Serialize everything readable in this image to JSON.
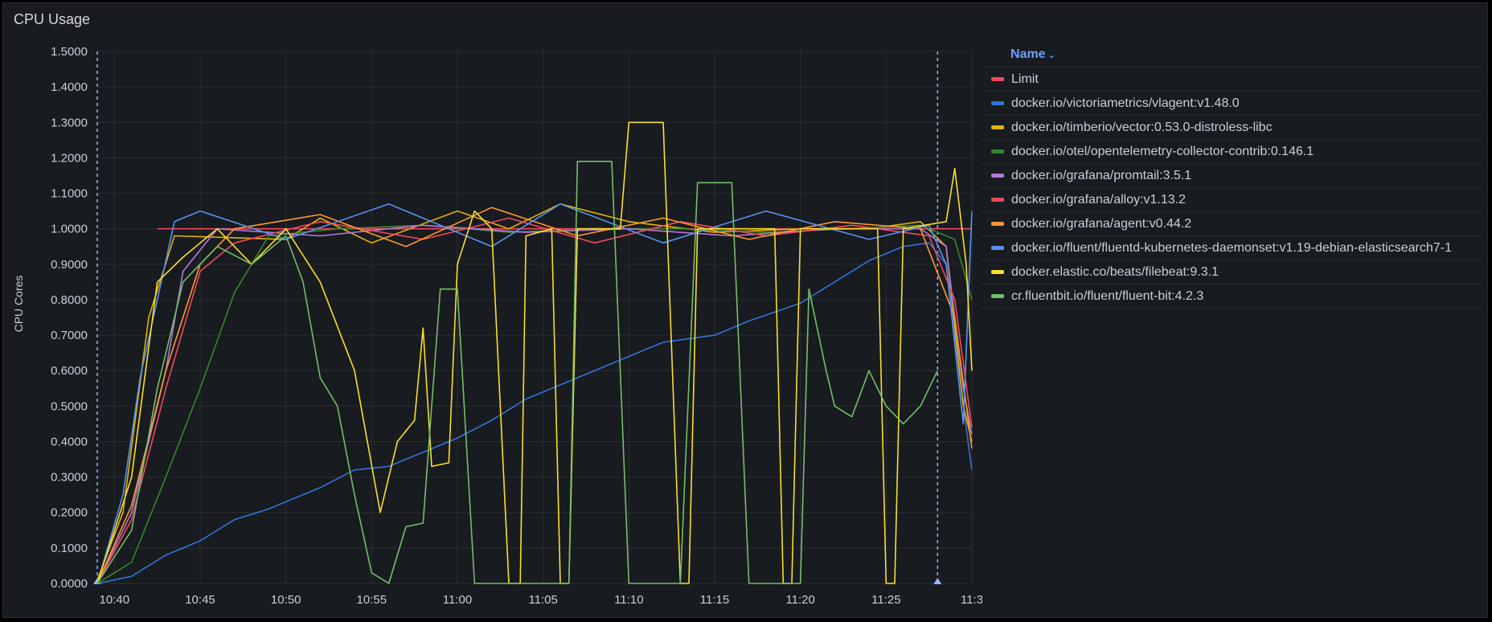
{
  "panel": {
    "title": "CPU Usage"
  },
  "legend": {
    "header": "Name",
    "sort_icon": "chevron-down-icon"
  },
  "colors": {
    "background": "#181b1f",
    "grid": "#2a2d34",
    "axis_text": "#ccccdc",
    "annotation": "#8ab8ff"
  },
  "chart_data": {
    "type": "line",
    "title": "CPU Usage",
    "xlabel": "",
    "ylabel": "CPU Cores",
    "ylim": [
      0,
      1.5
    ],
    "xlim": [
      "10:39:00",
      "11:30:00"
    ],
    "grid": true,
    "legend_position": "right",
    "y_ticks": [
      "0.0000",
      "0.1000",
      "0.2000",
      "0.3000",
      "0.4000",
      "0.5000",
      "0.6000",
      "0.7000",
      "0.8000",
      "0.9000",
      "1.0000",
      "1.1000",
      "1.2000",
      "1.3000",
      "1.4000",
      "1.5000"
    ],
    "x_ticks": [
      "10:40",
      "10:45",
      "10:50",
      "10:55",
      "11:00",
      "11:05",
      "11:10",
      "11:15",
      "11:20",
      "11:25",
      "11:3"
    ],
    "annotations": [
      {
        "x": "10:39:00"
      },
      {
        "x": "11:28:00"
      }
    ],
    "series": [
      {
        "name": "Limit",
        "color": "#f2495c",
        "points": [
          [
            "10:42:30",
            1.0
          ],
          [
            "11:30:00",
            1.0
          ]
        ]
      },
      {
        "name": "docker.io/victoriametrics/vlagent:v1.48.0",
        "color": "#3274d9",
        "points": [
          [
            "10:39:00",
            0.0
          ],
          [
            "10:41:00",
            0.02
          ],
          [
            "10:42:00",
            0.05
          ],
          [
            "10:43:00",
            0.08
          ],
          [
            "10:45:00",
            0.12
          ],
          [
            "10:47:00",
            0.18
          ],
          [
            "10:49:00",
            0.21
          ],
          [
            "10:52:00",
            0.27
          ],
          [
            "10:54:00",
            0.32
          ],
          [
            "10:56:00",
            0.33
          ],
          [
            "10:58:00",
            0.37
          ],
          [
            "11:00:00",
            0.41
          ],
          [
            "11:02:00",
            0.46
          ],
          [
            "11:04:00",
            0.52
          ],
          [
            "11:06:00",
            0.56
          ],
          [
            "11:08:00",
            0.6
          ],
          [
            "11:10:00",
            0.64
          ],
          [
            "11:12:00",
            0.68
          ],
          [
            "11:15:00",
            0.7
          ],
          [
            "11:17:00",
            0.74
          ],
          [
            "11:20:00",
            0.79
          ],
          [
            "11:22:00",
            0.85
          ],
          [
            "11:24:00",
            0.91
          ],
          [
            "11:26:00",
            0.95
          ],
          [
            "11:27:30",
            0.96
          ],
          [
            "11:28:30",
            0.9
          ],
          [
            "11:29:30",
            0.5
          ],
          [
            "11:30:00",
            0.32
          ]
        ]
      },
      {
        "name": "docker.io/timberio/vector:0.53.0-distroless-libc",
        "color": "#e0b400",
        "points": [
          [
            "10:39:00",
            0.01
          ],
          [
            "10:40:30",
            0.2
          ],
          [
            "10:42:00",
            0.75
          ],
          [
            "10:43:30",
            0.98
          ],
          [
            "10:50:00",
            0.97
          ],
          [
            "10:52:00",
            1.03
          ],
          [
            "10:55:00",
            0.96
          ],
          [
            "11:00:00",
            1.05
          ],
          [
            "11:03:00",
            1.0
          ],
          [
            "11:06:00",
            1.07
          ],
          [
            "11:10:00",
            1.02
          ],
          [
            "11:15:00",
            0.99
          ],
          [
            "11:20:00",
            1.0
          ],
          [
            "11:24:00",
            1.0
          ],
          [
            "11:27:00",
            1.02
          ],
          [
            "11:28:30",
            0.95
          ],
          [
            "11:29:30",
            0.5
          ],
          [
            "11:30:00",
            0.4
          ]
        ]
      },
      {
        "name": "docker.io/otel/opentelemetry-collector-contrib:0.146.1",
        "color": "#37872d",
        "points": [
          [
            "10:39:00",
            0.0
          ],
          [
            "10:41:00",
            0.06
          ],
          [
            "10:43:00",
            0.3
          ],
          [
            "10:45:00",
            0.55
          ],
          [
            "10:47:00",
            0.82
          ],
          [
            "10:49:00",
            0.98
          ],
          [
            "10:53:00",
            1.0
          ],
          [
            "10:58:00",
            1.01
          ],
          [
            "11:03:00",
            0.99
          ],
          [
            "11:08:00",
            1.0
          ],
          [
            "11:13:00",
            1.0
          ],
          [
            "11:18:00",
            0.99
          ],
          [
            "11:23:00",
            1.0
          ],
          [
            "11:27:00",
            1.01
          ],
          [
            "11:29:00",
            0.97
          ],
          [
            "11:30:00",
            0.8
          ]
        ]
      },
      {
        "name": "docker.io/grafana/promtail:3.5.1",
        "color": "#b877d9",
        "points": [
          [
            "10:39:00",
            0.0
          ],
          [
            "10:41:00",
            0.2
          ],
          [
            "10:43:00",
            0.6
          ],
          [
            "10:44:00",
            0.88
          ],
          [
            "10:46:00",
            1.0
          ],
          [
            "10:52:00",
            0.98
          ],
          [
            "10:58:00",
            1.01
          ],
          [
            "11:04:00",
            0.99
          ],
          [
            "11:10:00",
            1.0
          ],
          [
            "11:16:00",
            0.98
          ],
          [
            "11:22:00",
            1.0
          ],
          [
            "11:27:00",
            1.0
          ],
          [
            "11:28:30",
            0.95
          ],
          [
            "11:29:30",
            0.55
          ],
          [
            "11:30:00",
            0.42
          ]
        ]
      },
      {
        "name": "docker.io/grafana/alloy:v1.13.2",
        "color": "#f2495c",
        "points": [
          [
            "10:39:00",
            0.0
          ],
          [
            "10:41:00",
            0.18
          ],
          [
            "10:43:00",
            0.55
          ],
          [
            "10:45:00",
            0.88
          ],
          [
            "10:47:00",
            0.96
          ],
          [
            "10:52:00",
            1.02
          ],
          [
            "10:58:00",
            0.97
          ],
          [
            "11:03:00",
            1.03
          ],
          [
            "11:08:00",
            0.96
          ],
          [
            "11:13:00",
            1.02
          ],
          [
            "11:18:00",
            0.98
          ],
          [
            "11:23:00",
            1.01
          ],
          [
            "11:27:30",
            0.98
          ],
          [
            "11:29:00",
            0.8
          ],
          [
            "11:30:00",
            0.44
          ]
        ]
      },
      {
        "name": "docker.io/grafana/agent:v0.44.2",
        "color": "#ff9830",
        "points": [
          [
            "10:39:00",
            0.0
          ],
          [
            "10:41:00",
            0.22
          ],
          [
            "10:43:00",
            0.6
          ],
          [
            "10:45:00",
            0.9
          ],
          [
            "10:47:00",
            1.0
          ],
          [
            "10:52:00",
            1.04
          ],
          [
            "10:57:00",
            0.95
          ],
          [
            "11:02:00",
            1.06
          ],
          [
            "11:07:00",
            0.98
          ],
          [
            "11:12:00",
            1.03
          ],
          [
            "11:17:00",
            0.97
          ],
          [
            "11:22:00",
            1.02
          ],
          [
            "11:27:00",
            1.0
          ],
          [
            "11:29:00",
            0.75
          ],
          [
            "11:30:00",
            0.38
          ]
        ]
      },
      {
        "name": "docker.io/fluent/fluentd-kubernetes-daemonset:v1.19-debian-elasticsearch7-1",
        "color": "#5794f2",
        "points": [
          [
            "10:39:00",
            0.0
          ],
          [
            "10:40:30",
            0.25
          ],
          [
            "10:41:30",
            0.58
          ],
          [
            "10:42:30",
            0.8
          ],
          [
            "10:43:30",
            1.02
          ],
          [
            "10:45:00",
            1.05
          ],
          [
            "10:50:00",
            0.97
          ],
          [
            "10:56:00",
            1.07
          ],
          [
            "11:02:00",
            0.95
          ],
          [
            "11:06:00",
            1.07
          ],
          [
            "11:12:00",
            0.96
          ],
          [
            "11:18:00",
            1.05
          ],
          [
            "11:24:00",
            0.97
          ],
          [
            "11:27:30",
            1.01
          ],
          [
            "11:28:30",
            0.9
          ],
          [
            "11:29:30",
            0.45
          ],
          [
            "11:30:00",
            1.05
          ]
        ]
      },
      {
        "name": "docker.elastic.co/beats/filebeat:9.3.1",
        "color": "#fade2a",
        "points": [
          [
            "10:39:00",
            0.0
          ],
          [
            "10:41:00",
            0.3
          ],
          [
            "10:42:30",
            0.85
          ],
          [
            "10:44:00",
            0.92
          ],
          [
            "10:46:00",
            1.0
          ],
          [
            "10:48:00",
            0.9
          ],
          [
            "10:50:00",
            1.0
          ],
          [
            "10:52:00",
            0.85
          ],
          [
            "10:54:00",
            0.6
          ],
          [
            "10:55:30",
            0.2
          ],
          [
            "10:56:30",
            0.4
          ],
          [
            "10:57:30",
            0.46
          ],
          [
            "10:58:00",
            0.72
          ],
          [
            "10:58:30",
            0.33
          ],
          [
            "10:59:30",
            0.34
          ],
          [
            "11:00:00",
            0.9
          ],
          [
            "11:01:00",
            1.05
          ],
          [
            "11:02:00",
            1.0
          ],
          [
            "11:03:00",
            0.0
          ],
          [
            "11:03:40",
            0.0
          ],
          [
            "11:04:00",
            0.98
          ],
          [
            "11:05:30",
            1.0
          ],
          [
            "11:06:00",
            0.0
          ],
          [
            "11:06:30",
            0.0
          ],
          [
            "11:07:00",
            1.0
          ],
          [
            "11:09:30",
            1.0
          ],
          [
            "11:10:00",
            1.3
          ],
          [
            "11:12:00",
            1.3
          ],
          [
            "11:13:00",
            0.0
          ],
          [
            "11:13:30",
            0.0
          ],
          [
            "11:14:00",
            1.0
          ],
          [
            "11:18:30",
            1.0
          ],
          [
            "11:19:00",
            0.0
          ],
          [
            "11:19:30",
            0.0
          ],
          [
            "11:20:00",
            1.0
          ],
          [
            "11:24:30",
            1.0
          ],
          [
            "11:25:00",
            0.0
          ],
          [
            "11:25:30",
            0.0
          ],
          [
            "11:26:00",
            1.0
          ],
          [
            "11:28:30",
            1.02
          ],
          [
            "11:29:00",
            1.17
          ],
          [
            "11:29:40",
            0.9
          ],
          [
            "11:30:00",
            0.6
          ]
        ]
      },
      {
        "name": "cr.fluentbit.io/fluent/fluent-bit:4.2.3",
        "color": "#73bf69",
        "points": [
          [
            "10:39:00",
            0.0
          ],
          [
            "10:41:00",
            0.15
          ],
          [
            "10:42:30",
            0.55
          ],
          [
            "10:44:00",
            0.85
          ],
          [
            "10:46:00",
            0.95
          ],
          [
            "10:48:00",
            0.9
          ],
          [
            "10:50:00",
            0.98
          ],
          [
            "10:51:00",
            0.85
          ],
          [
            "10:52:00",
            0.58
          ],
          [
            "10:53:00",
            0.5
          ],
          [
            "10:54:00",
            0.25
          ],
          [
            "10:55:00",
            0.03
          ],
          [
            "10:56:00",
            0.0
          ],
          [
            "10:57:00",
            0.16
          ],
          [
            "10:58:00",
            0.17
          ],
          [
            "10:59:00",
            0.83
          ],
          [
            "11:00:00",
            0.83
          ],
          [
            "11:01:00",
            0.0
          ],
          [
            "11:06:30",
            0.0
          ],
          [
            "11:07:00",
            1.19
          ],
          [
            "11:09:00",
            1.19
          ],
          [
            "11:10:00",
            0.0
          ],
          [
            "11:13:00",
            0.0
          ],
          [
            "11:14:00",
            1.13
          ],
          [
            "11:16:00",
            1.13
          ],
          [
            "11:17:00",
            0.0
          ],
          [
            "11:20:00",
            0.0
          ],
          [
            "11:20:30",
            0.83
          ],
          [
            "11:21:30",
            0.6
          ],
          [
            "11:22:00",
            0.5
          ],
          [
            "11:23:00",
            0.47
          ],
          [
            "11:24:00",
            0.6
          ],
          [
            "11:25:00",
            0.5
          ],
          [
            "11:26:00",
            0.45
          ],
          [
            "11:27:00",
            0.5
          ],
          [
            "11:28:00",
            0.6
          ]
        ]
      }
    ]
  }
}
